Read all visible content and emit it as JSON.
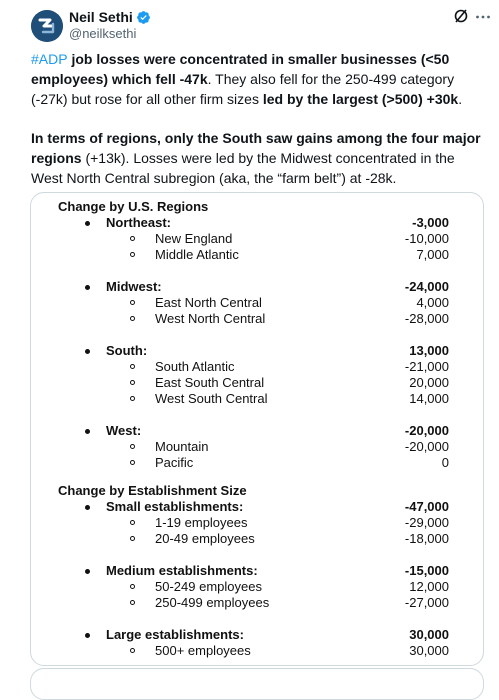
{
  "author": {
    "name": "Neil Sethi",
    "handle": "@neilksethi",
    "avatar_icon": "neil-sethi-logo",
    "verified_color": "#1d9bf0"
  },
  "tweet": {
    "p1_hashtag": "#ADP",
    "p1_bold1": " job losses were concentrated in smaller businesses (<50 employees) which fell -47k",
    "p1_text1": ". They also fell for the 250-499 category (-27k) but rose for all other firm sizes ",
    "p1_bold2": "led by the largest (>500) +30k",
    "p1_text2": ".",
    "p2_bold": "In terms of regions, only the South saw gains among the four major regions",
    "p2_text": " (+13k). Losses were led by the Midwest concentrated in the West North Central subregion (aka, the “farm belt”) at -28k."
  },
  "table": {
    "regions_header": "Change by U.S. Regions",
    "northeast": {
      "label": "Northeast:",
      "value": "-3,000"
    },
    "new_england": {
      "label": "New England",
      "value": "-10,000"
    },
    "middle_atlantic": {
      "label": "Middle Atlantic",
      "value": "7,000"
    },
    "midwest": {
      "label": "Midwest:",
      "value": "-24,000"
    },
    "east_north_central": {
      "label": "East North Central",
      "value": "4,000"
    },
    "west_north_central": {
      "label": "West North Central",
      "value": "-28,000"
    },
    "south": {
      "label": "South:",
      "value": "13,000"
    },
    "south_atlantic": {
      "label": "South Atlantic",
      "value": "-21,000"
    },
    "east_south_central": {
      "label": "East South Central",
      "value": "20,000"
    },
    "west_south_central": {
      "label": "West South Central",
      "value": "14,000"
    },
    "west": {
      "label": "West:",
      "value": "-20,000"
    },
    "mountain": {
      "label": "Mountain",
      "value": "-20,000"
    },
    "pacific": {
      "label": "Pacific",
      "value": "0"
    },
    "size_header": "Change by Establishment Size",
    "small": {
      "label": "Small establishments:",
      "value": "-47,000"
    },
    "emp_1_19": {
      "label": "1-19 employees",
      "value": "-29,000"
    },
    "emp_20_49": {
      "label": "20-49 employees",
      "value": "-18,000"
    },
    "medium": {
      "label": "Medium establishments:",
      "value": "-15,000"
    },
    "emp_50_249": {
      "label": "50-249 employees",
      "value": "12,000"
    },
    "emp_250_499": {
      "label": "250-499 employees",
      "value": "-27,000"
    },
    "large": {
      "label": "Large establishments:",
      "value": "30,000"
    },
    "emp_500_plus": {
      "label": "500+ employees",
      "value": "30,000"
    }
  }
}
